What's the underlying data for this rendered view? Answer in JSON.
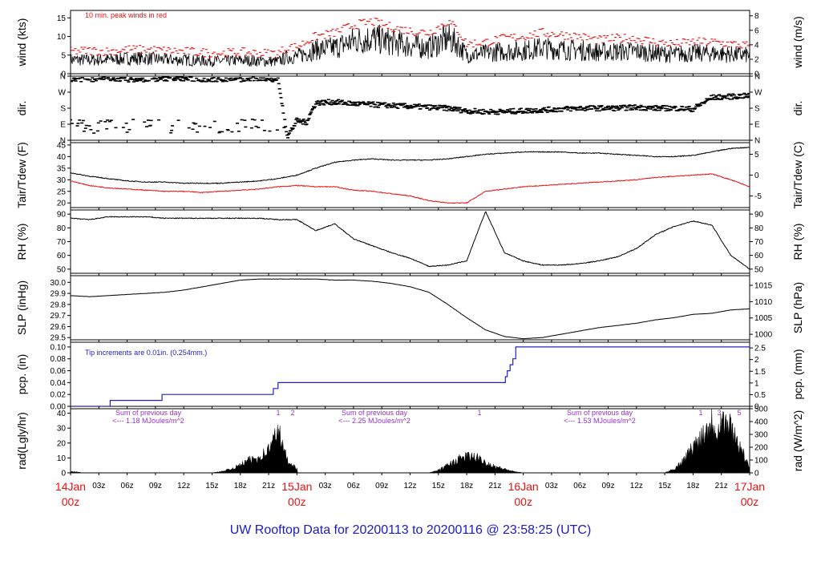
{
  "title": "UW Rooftop Data for 20200113  to  20200116 @ 23:58:25  (UTC)",
  "colors": {
    "series": "#000000",
    "peak": "#ee1111",
    "dew": "#ee1111",
    "pcp": "#2222cc",
    "annot": "#9933cc",
    "footer": "#1a1acc",
    "day": "#ee1111"
  },
  "x_axis": {
    "hour_ticks": [
      "03z",
      "06z",
      "09z",
      "12z",
      "15z",
      "18z",
      "21z",
      "03z",
      "06z",
      "09z",
      "12z",
      "15z",
      "18z",
      "21z",
      "03z",
      "06z",
      "09z",
      "12z",
      "15z",
      "18z",
      "21z"
    ],
    "day_labels": [
      {
        "date": "14Jan",
        "hour": "00z"
      },
      {
        "date": "15Jan",
        "hour": "00z"
      },
      {
        "date": "16Jan",
        "hour": "00z"
      },
      {
        "date": "17Jan",
        "hour": "00z"
      }
    ],
    "range_hours": [
      0,
      72
    ]
  },
  "chart_data": [
    {
      "type": "line",
      "id": "wind",
      "ylabel_left": "wind (kts)",
      "ylabel_right": "wind (m/s)",
      "yticks_left": [
        "0",
        "5",
        "10",
        "15"
      ],
      "yticks_right": [
        "0",
        "2",
        "4",
        "6",
        "8"
      ],
      "ylim": [
        0,
        17
      ],
      "annotation": "10 min. peak winds in red",
      "series": [
        {
          "name": "wind",
          "x": [
            0,
            2,
            4,
            6,
            8,
            10,
            12,
            14,
            16,
            18,
            20,
            22,
            23,
            24,
            26,
            28,
            30,
            32,
            34,
            36,
            38,
            40,
            41,
            42,
            44,
            46,
            48,
            50,
            52,
            54,
            56,
            58,
            60,
            62,
            64,
            66,
            68,
            70,
            72
          ],
          "values": [
            3.8,
            3.7,
            3.8,
            4.1,
            4.2,
            3.8,
            3.7,
            3.5,
            3.4,
            3.6,
            3.4,
            3.3,
            4.5,
            4.6,
            6.5,
            7.0,
            8.8,
            9.5,
            8.5,
            7.5,
            7.0,
            9.5,
            8.0,
            5.0,
            5.5,
            6.0,
            6.2,
            7.0,
            6.5,
            6.3,
            5.8,
            6.0,
            6.0,
            5.5,
            5.2,
            5.5,
            5.5,
            5.2,
            5.0
          ]
        },
        {
          "name": "10 min. peak winds",
          "x": [
            0,
            2,
            4,
            6,
            8,
            10,
            12,
            14,
            16,
            18,
            20,
            22,
            23,
            24,
            26,
            28,
            30,
            32,
            34,
            36,
            38,
            40,
            41,
            42,
            44,
            46,
            48,
            50,
            52,
            54,
            56,
            58,
            60,
            62,
            64,
            66,
            68,
            70,
            72
          ],
          "values": [
            6.0,
            6.2,
            6.0,
            6.5,
            6.5,
            6.2,
            6.0,
            5.7,
            5.5,
            5.8,
            5.5,
            5.5,
            7.0,
            7.2,
            10.0,
            11.0,
            13.0,
            14.0,
            12.5,
            11.5,
            11.0,
            14.0,
            12.0,
            8.0,
            8.5,
            9.5,
            10.0,
            11.0,
            10.5,
            10.0,
            9.0,
            9.5,
            9.5,
            8.5,
            8.0,
            8.5,
            8.5,
            8.0,
            7.5
          ]
        }
      ]
    },
    {
      "type": "scatter",
      "id": "dir",
      "ylabel_left": "dir.",
      "ylabel_right": "dir.",
      "yticks_left": [
        "N",
        "E",
        "S",
        "W",
        "N"
      ],
      "yticks_right": [
        "N",
        "E",
        "S",
        "W",
        "N"
      ],
      "ylim": [
        0,
        360
      ],
      "series": [
        {
          "name": "wind direction",
          "x": [
            0,
            2,
            4,
            6,
            8,
            10,
            12,
            14,
            16,
            18,
            20,
            22,
            23,
            24,
            25,
            26,
            28,
            30,
            32,
            34,
            36,
            38,
            40,
            42,
            44,
            46,
            48,
            50,
            52,
            54,
            56,
            58,
            60,
            62,
            64,
            66,
            68,
            70,
            72
          ],
          "values": [
            340,
            340,
            345,
            340,
            340,
            345,
            345,
            340,
            340,
            340,
            345,
            340,
            20,
            110,
            100,
            210,
            215,
            205,
            200,
            195,
            190,
            185,
            180,
            165,
            160,
            160,
            165,
            170,
            175,
            180,
            180,
            180,
            185,
            180,
            180,
            175,
            240,
            245,
            250
          ]
        }
      ]
    },
    {
      "type": "line",
      "id": "temp",
      "ylabel_left": "Tair/Tdew (F)",
      "ylabel_right": "Tair/Tdew (C)",
      "yticks_left": [
        "20",
        "25",
        "30",
        "35",
        "40",
        "45"
      ],
      "yticks_right": [
        "-5",
        "0",
        "5"
      ],
      "ylim": [
        18,
        46
      ],
      "series": [
        {
          "name": "Tair",
          "x": [
            0,
            2,
            4,
            6,
            8,
            10,
            12,
            14,
            16,
            18,
            20,
            22,
            24,
            26,
            28,
            30,
            32,
            34,
            36,
            38,
            40,
            42,
            44,
            46,
            48,
            50,
            52,
            54,
            56,
            58,
            60,
            62,
            64,
            66,
            68,
            70,
            72
          ],
          "values": [
            33.0,
            31.5,
            30.5,
            29.5,
            29.0,
            29.0,
            28.5,
            28.5,
            28.5,
            29.0,
            29.5,
            30.5,
            32.0,
            35.0,
            37.5,
            38.5,
            39.0,
            38.5,
            38.5,
            38.5,
            39.0,
            40.0,
            41.0,
            41.5,
            42.0,
            42.0,
            42.0,
            41.5,
            41.5,
            41.0,
            40.5,
            40.0,
            40.0,
            40.5,
            42.0,
            43.5,
            44.0
          ]
        },
        {
          "name": "Tdew",
          "x": [
            0,
            2,
            4,
            6,
            8,
            10,
            12,
            14,
            16,
            18,
            20,
            22,
            24,
            26,
            28,
            30,
            32,
            34,
            36,
            38,
            40,
            42,
            44,
            46,
            48,
            50,
            52,
            54,
            56,
            58,
            60,
            62,
            64,
            66,
            68,
            70,
            72
          ],
          "values": [
            29.5,
            27.5,
            26.5,
            26.0,
            25.5,
            25.0,
            25.0,
            24.5,
            25.0,
            25.5,
            26.0,
            27.0,
            27.5,
            27.0,
            27.0,
            25.5,
            25.0,
            24.0,
            23.0,
            21.0,
            20.0,
            20.0,
            25.0,
            26.0,
            27.0,
            27.5,
            28.0,
            28.5,
            29.0,
            29.5,
            30.0,
            31.0,
            31.5,
            32.0,
            32.5,
            30.0,
            27.0
          ]
        }
      ]
    },
    {
      "type": "line",
      "id": "rh",
      "ylabel_left": "RH (%)",
      "ylabel_right": "RH (%)",
      "yticks_left": [
        "50",
        "60",
        "70",
        "80",
        "90"
      ],
      "yticks_right": [
        "50",
        "60",
        "70",
        "80",
        "90"
      ],
      "ylim": [
        47,
        93
      ],
      "series": [
        {
          "name": "RH",
          "x": [
            0,
            2,
            4,
            6,
            8,
            10,
            12,
            14,
            16,
            18,
            20,
            22,
            24,
            26,
            28,
            30,
            32,
            34,
            36,
            38,
            40,
            42,
            44,
            46,
            48,
            50,
            52,
            54,
            56,
            58,
            60,
            62,
            64,
            66,
            68,
            70,
            72
          ],
          "values": [
            87,
            86,
            88,
            88,
            88,
            87,
            87,
            87,
            87,
            87,
            87,
            86,
            86,
            78,
            83,
            72,
            67,
            62,
            58,
            52,
            53,
            56,
            92,
            62,
            56,
            53,
            53,
            54,
            56,
            59,
            65,
            75,
            81,
            85,
            82,
            60,
            50
          ]
        }
      ]
    },
    {
      "type": "line",
      "id": "slp",
      "ylabel_left": "SLP (inHg)",
      "ylabel_right": "SLP (hPa)",
      "yticks_left": [
        "29.5",
        "29.6",
        "29.7",
        "29.8",
        "29.9",
        "30.0"
      ],
      "yticks_right": [
        "1000",
        "1005",
        "1010",
        "1015"
      ],
      "ylim": [
        29.48,
        30.06
      ],
      "series": [
        {
          "name": "SLP",
          "x": [
            0,
            2,
            4,
            6,
            8,
            10,
            12,
            14,
            16,
            18,
            20,
            22,
            24,
            26,
            28,
            30,
            32,
            34,
            36,
            38,
            40,
            42,
            44,
            46,
            48,
            50,
            52,
            54,
            56,
            58,
            60,
            62,
            64,
            66,
            68,
            70,
            72
          ],
          "values": [
            29.88,
            29.87,
            29.88,
            29.89,
            29.9,
            29.91,
            29.93,
            29.96,
            29.99,
            30.02,
            30.03,
            30.03,
            30.03,
            30.03,
            30.02,
            30.02,
            30.01,
            29.99,
            29.96,
            29.91,
            29.8,
            29.68,
            29.57,
            29.51,
            29.49,
            29.5,
            29.53,
            29.56,
            29.59,
            29.61,
            29.63,
            29.66,
            29.68,
            29.71,
            29.72,
            29.75,
            29.76
          ]
        }
      ]
    },
    {
      "type": "line",
      "id": "pcp",
      "ylabel_left": "pcp. (in)",
      "ylabel_right": "pcp. (mm)",
      "yticks_left": [
        "0.00",
        "0.02",
        "0.04",
        "0.06",
        "0.08",
        "0.10"
      ],
      "yticks_right": [
        "0",
        "0.5",
        "1",
        "1.5",
        "2",
        "2.5"
      ],
      "ylim": [
        0,
        0.108
      ],
      "annotation": "Tip increments are 0.01in. (0.254mm.)",
      "series": [
        {
          "name": "precipitation",
          "step": true,
          "x": [
            0,
            4.2,
            9.7,
            21.5,
            22.0,
            46.1,
            46.3,
            46.6,
            46.9,
            47.2,
            72
          ],
          "values": [
            0,
            0.01,
            0.02,
            0.03,
            0.04,
            0.05,
            0.06,
            0.07,
            0.08,
            0.1,
            0.1
          ]
        }
      ]
    },
    {
      "type": "area",
      "id": "rad",
      "ylabel_left": "rad(Lgly/hr)",
      "ylabel_right": "rad (W/m^2)",
      "yticks_left": [
        "0",
        "10",
        "20",
        "30",
        "40"
      ],
      "yticks_right": [
        "0",
        "100",
        "200",
        "300",
        "400",
        "500"
      ],
      "ylim": [
        0,
        43
      ],
      "series": [
        {
          "name": "solar radiation",
          "x": [
            0,
            1,
            1.1,
            15,
            16,
            17,
            18,
            19,
            20,
            21,
            21.5,
            22,
            22.5,
            23,
            24,
            24.1,
            38,
            39,
            40,
            41,
            42,
            43,
            44,
            45,
            46,
            47,
            48,
            63,
            64,
            65,
            66,
            67,
            68,
            68.5,
            69,
            70,
            71,
            72
          ],
          "values": [
            1,
            0.5,
            0,
            0,
            1,
            3,
            6,
            10,
            12,
            18,
            25,
            34,
            20,
            10,
            3,
            0,
            0,
            2,
            6,
            10,
            13,
            12,
            8,
            5,
            3,
            1,
            0,
            0,
            3,
            10,
            20,
            30,
            40,
            33,
            42,
            35,
            20,
            3
          ]
        }
      ],
      "annotations": [
        {
          "text": "Sum of previous day",
          "line2": "<--- 1.18 MJoules/m^2"
        },
        {
          "text": "Sum of previous day",
          "line2": "<--- 2.25 MJoules/m^2"
        },
        {
          "text": "Sum of previous day",
          "line2": "<--- 1.53 MJoules/m^2"
        }
      ],
      "count_marks": [
        "1",
        "2",
        "1",
        "1",
        "3",
        "5"
      ]
    }
  ]
}
